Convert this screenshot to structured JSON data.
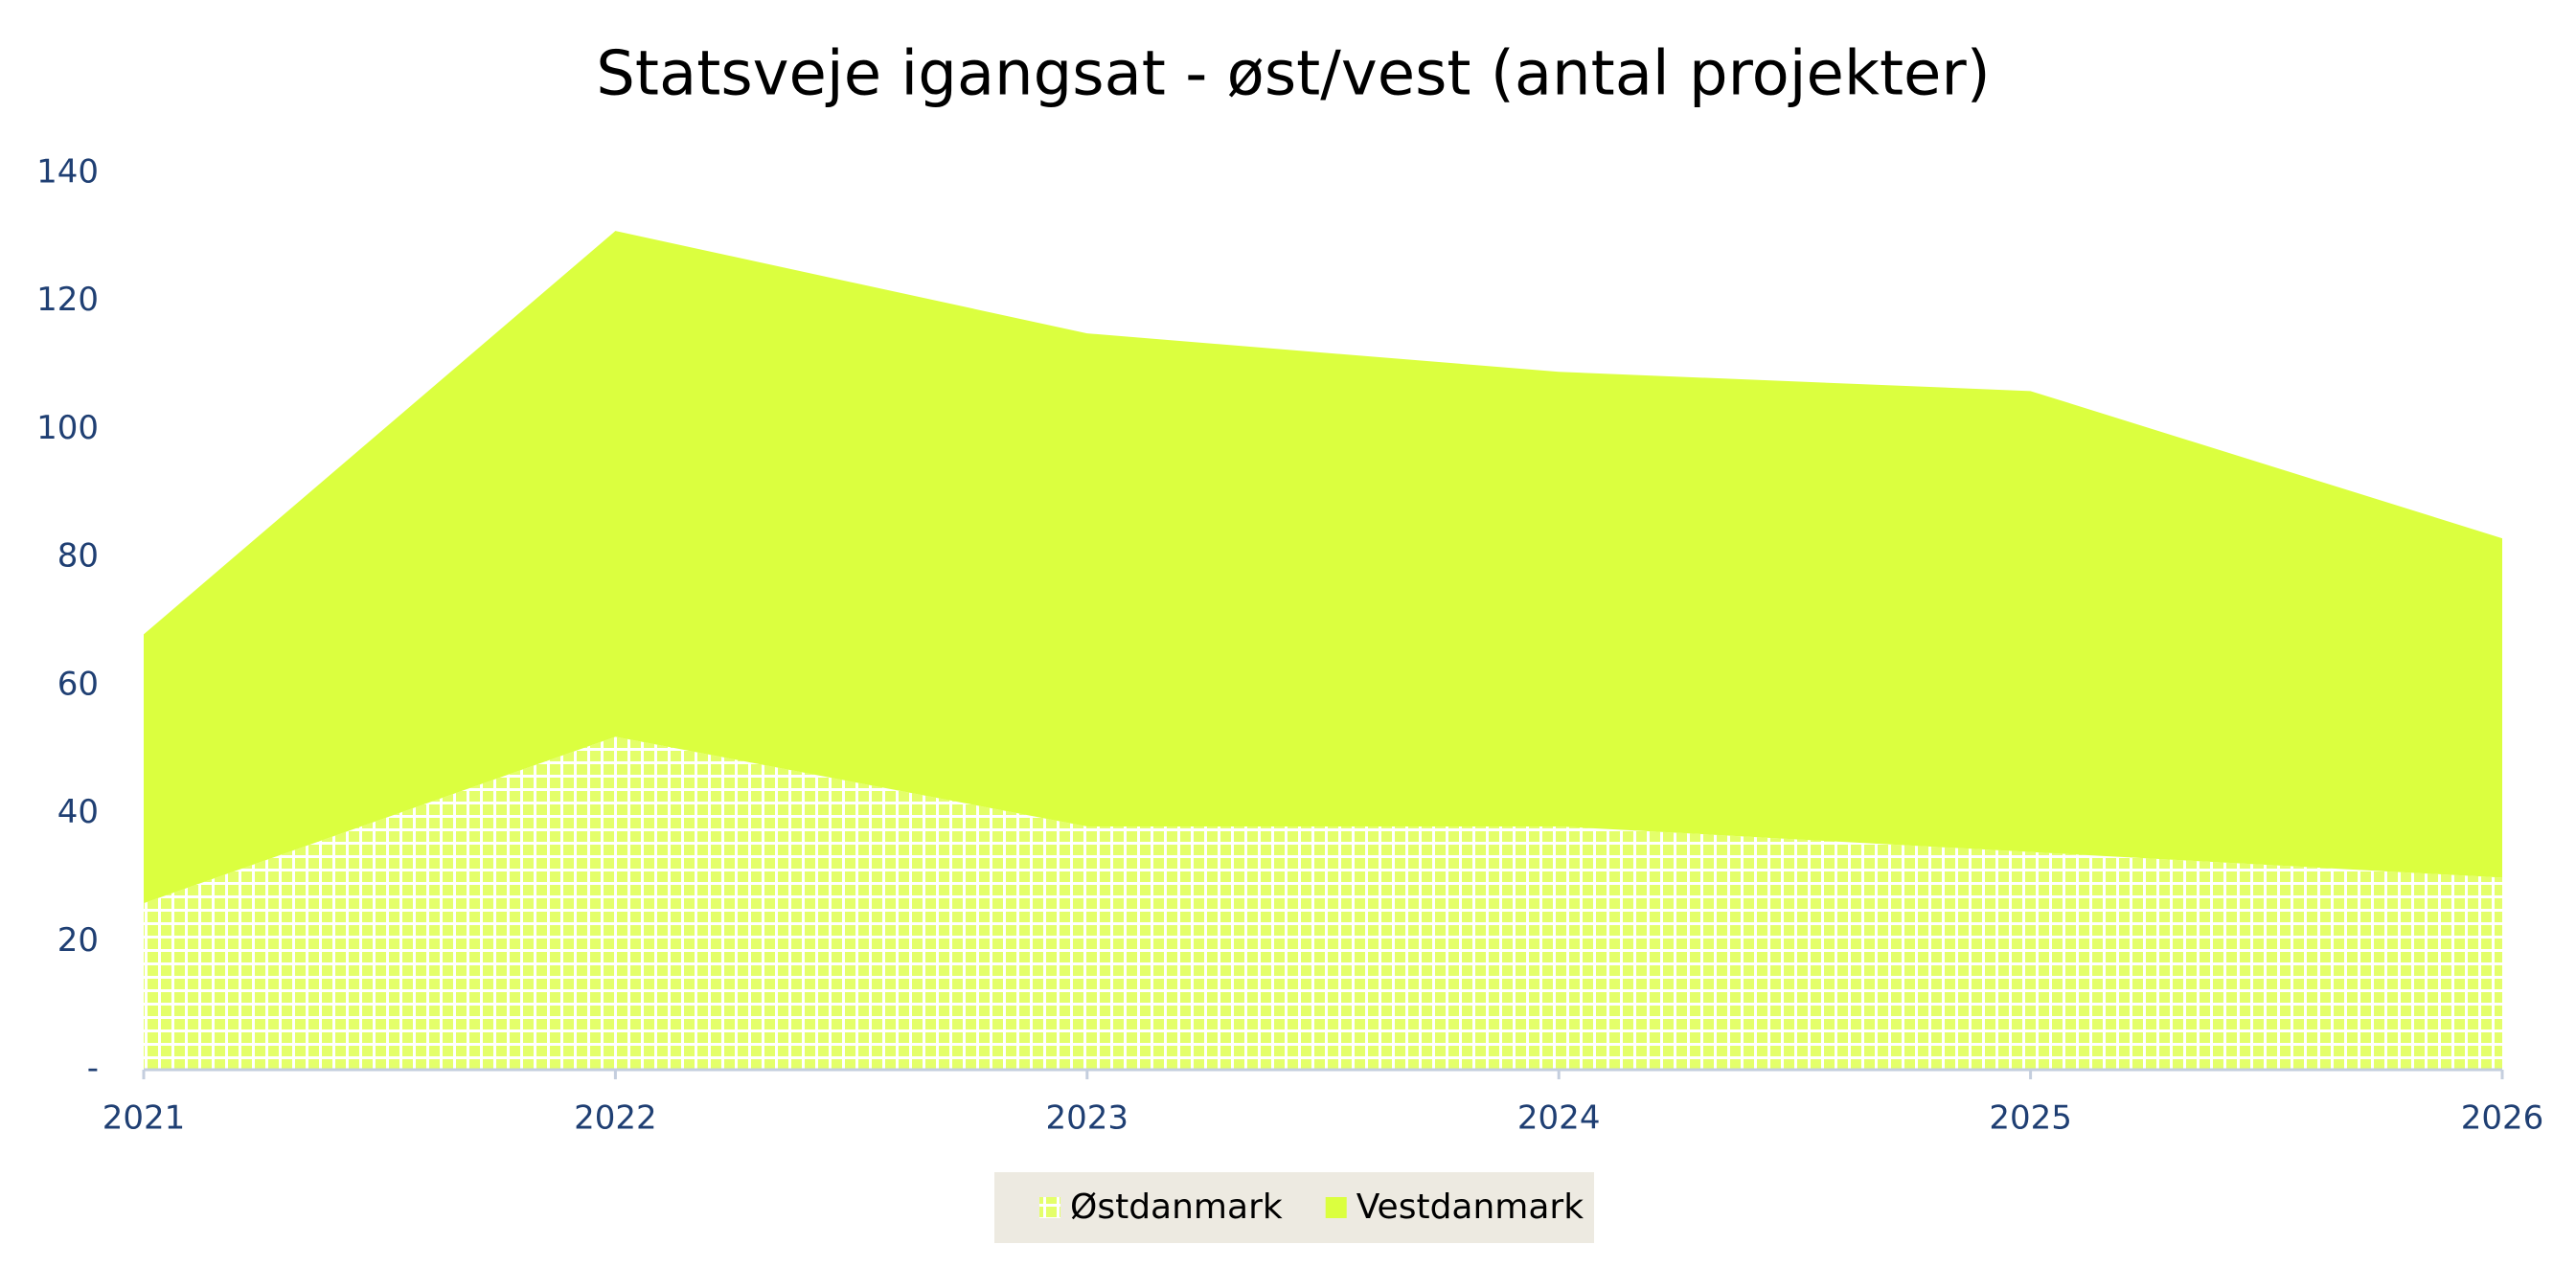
{
  "chart_data": {
    "type": "stacked_area",
    "title": "Statsveje igangsat - øst/vest (antal projekter)",
    "categories": [
      "2021",
      "2022",
      "2023",
      "2024",
      "2025",
      "2026"
    ],
    "series": [
      {
        "name": "Østdanmark",
        "color": "#dbff3f",
        "pattern": "grid",
        "values": [
          26,
          52,
          38,
          38,
          34,
          30
        ]
      },
      {
        "name": "Vestdanmark",
        "color": "#dbff3f",
        "values": [
          42,
          79,
          77,
          71,
          72,
          53
        ]
      }
    ],
    "ylim": [
      0,
      140
    ],
    "yticks": [
      {
        "value": 0,
        "label": "-"
      },
      20,
      40,
      60,
      80,
      100,
      120,
      140
    ],
    "legend": "bottom"
  }
}
